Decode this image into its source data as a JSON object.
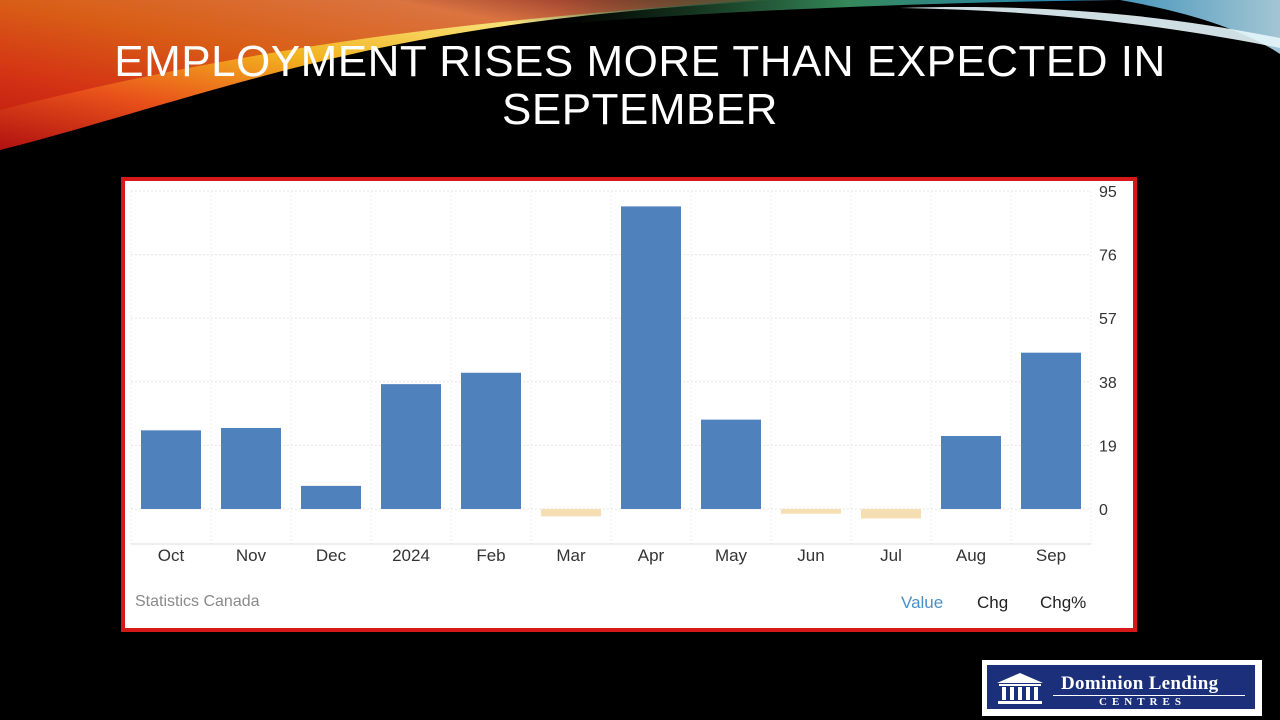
{
  "slide": {
    "title_line1": "EMPLOYMENT RISES MORE THAN EXPECTED IN",
    "title_line2": "SEPTEMBER"
  },
  "chart_data": {
    "type": "bar",
    "categories": [
      "Oct",
      "Nov",
      "Dec",
      "2024",
      "Feb",
      "Mar",
      "Apr",
      "May",
      "Jun",
      "Jul",
      "Aug",
      "Sep"
    ],
    "values": [
      23.5,
      24.2,
      6.9,
      37.3,
      40.7,
      -2.2,
      90.4,
      26.7,
      -1.4,
      -2.8,
      21.8,
      46.7
    ],
    "ylim": [
      -10,
      95
    ],
    "yticks": [
      0,
      19,
      38,
      57,
      76,
      95
    ],
    "y_axis_position": "right",
    "grid": true,
    "colors": {
      "positive": "#4f81bd",
      "negative": "#f5deb3"
    },
    "title": "",
    "xlabel": "",
    "ylabel": ""
  },
  "footer": {
    "source": "Statistics Canada",
    "toggles": [
      {
        "label": "Value",
        "active": true
      },
      {
        "label": "Chg",
        "active": false
      },
      {
        "label": "Chg%",
        "active": false
      }
    ]
  },
  "logo": {
    "line1": "Dominion Lending",
    "line2": "CENTRES"
  }
}
